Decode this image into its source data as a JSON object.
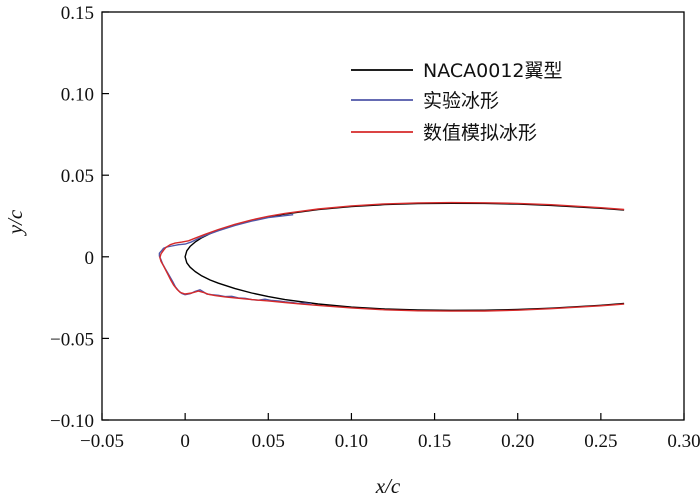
{
  "chart_data": {
    "type": "line",
    "xlabel": "x/c",
    "ylabel": "y/c",
    "xlim": [
      -0.05,
      0.3
    ],
    "ylim": [
      -0.1,
      0.15
    ],
    "xticks": [
      -0.05,
      0,
      0.05,
      0.1,
      0.15,
      0.2,
      0.25,
      0.3
    ],
    "xtick_labels": [
      "−0.05",
      "0",
      "0.05",
      "0.10",
      "0.15",
      "0.20",
      "0.25",
      "0.30"
    ],
    "yticks": [
      -0.1,
      -0.05,
      0,
      0.05,
      0.1,
      0.15
    ],
    "ytick_labels": [
      "−0.10",
      "−0.05",
      "0",
      "0.05",
      "0.10",
      "0.15"
    ],
    "grid": false,
    "legend_position": "top-right",
    "series": [
      {
        "name": "NACA0012翼型",
        "color": "#000000",
        "points": [
          [
            0.264,
            0.0286
          ],
          [
            0.25,
            0.0297
          ],
          [
            0.22,
            0.0315
          ],
          [
            0.2,
            0.0323
          ],
          [
            0.18,
            0.0327
          ],
          [
            0.16,
            0.0328
          ],
          [
            0.14,
            0.0326
          ],
          [
            0.12,
            0.032
          ],
          [
            0.1,
            0.0308
          ],
          [
            0.08,
            0.0289
          ],
          [
            0.06,
            0.0262
          ],
          [
            0.05,
            0.0244
          ],
          [
            0.04,
            0.0222
          ],
          [
            0.03,
            0.0195
          ],
          [
            0.02,
            0.0162
          ],
          [
            0.015,
            0.0142
          ],
          [
            0.01,
            0.0117
          ],
          [
            0.006,
            0.009
          ],
          [
            0.003,
            0.0064
          ],
          [
            0.001,
            0.0037
          ],
          [
            0.0,
            0.0
          ],
          [
            0.001,
            -0.0037
          ],
          [
            0.003,
            -0.0064
          ],
          [
            0.006,
            -0.009
          ],
          [
            0.01,
            -0.0117
          ],
          [
            0.015,
            -0.0142
          ],
          [
            0.02,
            -0.0162
          ],
          [
            0.03,
            -0.0195
          ],
          [
            0.04,
            -0.0222
          ],
          [
            0.05,
            -0.0244
          ],
          [
            0.06,
            -0.0262
          ],
          [
            0.08,
            -0.0289
          ],
          [
            0.1,
            -0.0308
          ],
          [
            0.12,
            -0.032
          ],
          [
            0.14,
            -0.0326
          ],
          [
            0.16,
            -0.0328
          ],
          [
            0.18,
            -0.0327
          ],
          [
            0.2,
            -0.0323
          ],
          [
            0.22,
            -0.0315
          ],
          [
            0.25,
            -0.0297
          ],
          [
            0.264,
            -0.0286
          ]
        ]
      },
      {
        "name": "实验冰形",
        "color": "#4f56a8",
        "points": [
          [
            0.065,
            0.0258
          ],
          [
            0.05,
            0.024
          ],
          [
            0.04,
            0.0219
          ],
          [
            0.03,
            0.0192
          ],
          [
            0.02,
            0.016
          ],
          [
            0.013,
            0.0135
          ],
          [
            0.008,
            0.0112
          ],
          [
            0.004,
            0.0092
          ],
          [
            0.0,
            0.0078
          ],
          [
            -0.004,
            0.0074
          ],
          [
            -0.008,
            0.0066
          ],
          [
            -0.011,
            0.006
          ],
          [
            -0.013,
            0.0052
          ],
          [
            -0.014,
            0.004
          ],
          [
            -0.0155,
            0.0022
          ],
          [
            -0.0155,
            0.0004
          ],
          [
            -0.0145,
            -0.0018
          ],
          [
            -0.0135,
            -0.0045
          ],
          [
            -0.012,
            -0.0072
          ],
          [
            -0.0105,
            -0.0098
          ],
          [
            -0.009,
            -0.0125
          ],
          [
            -0.0075,
            -0.0152
          ],
          [
            -0.006,
            -0.0182
          ],
          [
            -0.004,
            -0.0208
          ],
          [
            -0.002,
            -0.0225
          ],
          [
            0.0,
            -0.0232
          ],
          [
            0.003,
            -0.0226
          ],
          [
            0.006,
            -0.0212
          ],
          [
            0.009,
            -0.0202
          ],
          [
            0.011,
            -0.0215
          ],
          [
            0.013,
            -0.0228
          ],
          [
            0.016,
            -0.0232
          ],
          [
            0.02,
            -0.0236
          ],
          [
            0.024,
            -0.0244
          ],
          [
            0.028,
            -0.0242
          ],
          [
            0.032,
            -0.0252
          ],
          [
            0.036,
            -0.0254
          ],
          [
            0.04,
            -0.0262
          ],
          [
            0.044,
            -0.0266
          ],
          [
            0.048,
            -0.026
          ],
          [
            0.052,
            -0.0268
          ],
          [
            0.056,
            -0.027
          ],
          [
            0.06,
            -0.0276
          ],
          [
            0.064,
            -0.028
          ],
          [
            0.068,
            -0.0286
          ],
          [
            0.072,
            -0.0284
          ],
          [
            0.076,
            -0.0288
          ]
        ]
      },
      {
        "name": "数值模拟冰形",
        "color": "#d62a2a",
        "points": [
          [
            0.264,
            0.029
          ],
          [
            0.25,
            0.0301
          ],
          [
            0.22,
            0.0319
          ],
          [
            0.2,
            0.0327
          ],
          [
            0.18,
            0.0331
          ],
          [
            0.16,
            0.0332
          ],
          [
            0.14,
            0.033
          ],
          [
            0.12,
            0.0324
          ],
          [
            0.1,
            0.0312
          ],
          [
            0.08,
            0.0293
          ],
          [
            0.06,
            0.0266
          ],
          [
            0.05,
            0.0248
          ],
          [
            0.04,
            0.0226
          ],
          [
            0.03,
            0.0199
          ],
          [
            0.02,
            0.0167
          ],
          [
            0.012,
            0.0138
          ],
          [
            0.006,
            0.0114
          ],
          [
            0.002,
            0.0098
          ],
          [
            -0.002,
            0.009
          ],
          [
            -0.006,
            0.0084
          ],
          [
            -0.009,
            0.0074
          ],
          [
            -0.0115,
            0.0058
          ],
          [
            -0.013,
            0.004
          ],
          [
            -0.0145,
            0.0018
          ],
          [
            -0.0152,
            -0.0004
          ],
          [
            -0.0145,
            -0.0028
          ],
          [
            -0.013,
            -0.0055
          ],
          [
            -0.0115,
            -0.0085
          ],
          [
            -0.01,
            -0.0115
          ],
          [
            -0.0085,
            -0.0145
          ],
          [
            -0.007,
            -0.0172
          ],
          [
            -0.005,
            -0.0198
          ],
          [
            -0.003,
            -0.0218
          ],
          [
            0.0,
            -0.0228
          ],
          [
            0.004,
            -0.0222
          ],
          [
            0.008,
            -0.021
          ],
          [
            0.011,
            -0.0218
          ],
          [
            0.014,
            -0.023
          ],
          [
            0.018,
            -0.0238
          ],
          [
            0.024,
            -0.0246
          ],
          [
            0.03,
            -0.0252
          ],
          [
            0.04,
            -0.0262
          ],
          [
            0.05,
            -0.027
          ],
          [
            0.06,
            -0.028
          ],
          [
            0.07,
            -0.029
          ],
          [
            0.08,
            -0.0298
          ],
          [
            0.1,
            -0.0313
          ],
          [
            0.12,
            -0.0325
          ],
          [
            0.14,
            -0.0331
          ],
          [
            0.16,
            -0.0333
          ],
          [
            0.18,
            -0.0332
          ],
          [
            0.2,
            -0.0327
          ],
          [
            0.22,
            -0.0318
          ],
          [
            0.25,
            -0.03
          ],
          [
            0.264,
            -0.029
          ]
        ]
      }
    ]
  }
}
